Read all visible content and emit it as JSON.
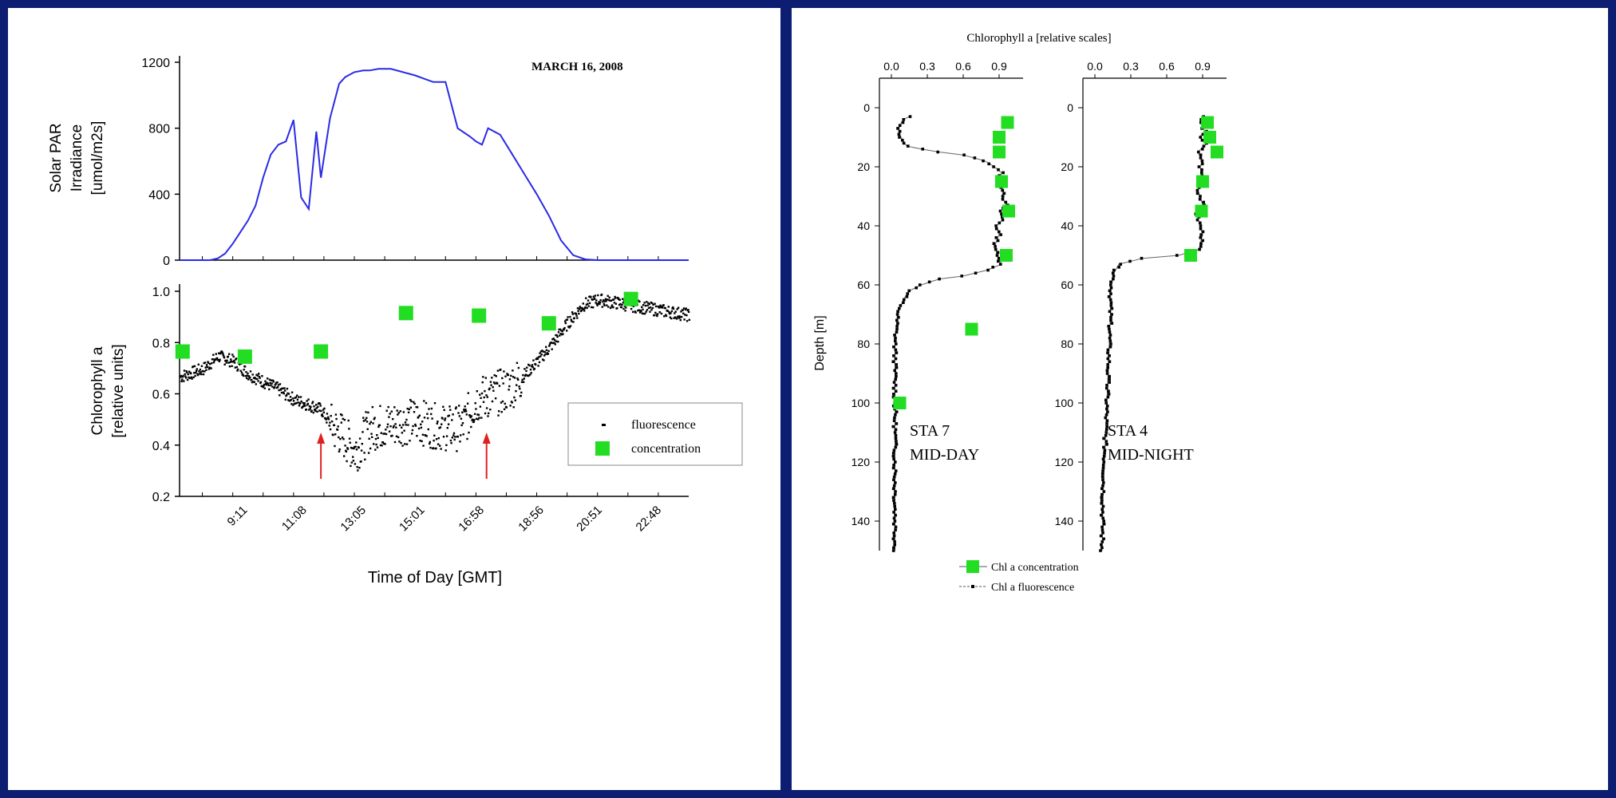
{
  "chart_data": [
    {
      "type": "line",
      "panel": "left-top",
      "title": "",
      "annotation": "MARCH 16, 2008",
      "ylabel_lines": [
        "Solar PAR",
        "Irradiance",
        "[umol/m2s]"
      ],
      "yticks": [
        "0",
        "400",
        "800",
        "1200"
      ],
      "ylim": [
        0,
        1200
      ],
      "xlim": [
        7.25,
        24.0
      ],
      "series": [
        {
          "color": "#2020e0",
          "x": [
            7.25,
            8.25,
            8.5,
            8.75,
            9.0,
            9.25,
            9.5,
            9.75,
            10.0,
            10.25,
            10.5,
            10.75,
            11.0,
            11.25,
            11.5,
            11.75,
            11.9,
            12.2,
            12.5,
            12.7,
            13.0,
            13.3,
            13.5,
            13.8,
            14.2,
            14.6,
            15.0,
            15.3,
            15.6,
            16.0,
            16.4,
            16.8,
            17.0,
            17.2,
            17.4,
            17.8,
            18.2,
            18.6,
            19.0,
            19.4,
            19.8,
            20.2,
            20.6,
            21.0,
            21.5,
            22.0,
            24.0
          ],
          "y": [
            0,
            0,
            10,
            40,
            100,
            170,
            240,
            330,
            500,
            640,
            700,
            720,
            850,
            380,
            310,
            780,
            500,
            860,
            1070,
            1110,
            1140,
            1150,
            1150,
            1160,
            1160,
            1140,
            1120,
            1100,
            1080,
            1080,
            800,
            750,
            720,
            700,
            800,
            760,
            640,
            520,
            400,
            270,
            120,
            30,
            5,
            0,
            0,
            0,
            0
          ]
        }
      ]
    },
    {
      "type": "scatter",
      "panel": "left-bottom",
      "ylabel_lines": [
        "Chlorophyll a",
        "[relative units]"
      ],
      "xlabel": "Time of Day [GMT]",
      "xticks": [
        "9:11",
        "11:08",
        "13:05",
        "15:01",
        "16:58",
        "18:56",
        "20:51",
        "22:48"
      ],
      "yticks": [
        "0.2",
        "0.4",
        "0.6",
        "0.8",
        "1.0"
      ],
      "ylim": [
        0.2,
        1.0
      ],
      "xlim": [
        7.25,
        24.0
      ],
      "legend": {
        "placement": "bottom-right",
        "entries": [
          "fluorescence",
          "concentration"
        ]
      },
      "series": [
        {
          "name": "fluorescence",
          "color": "#000000",
          "x": [
            7.25,
            8.0,
            8.5,
            9.0,
            9.5,
            10.0,
            10.5,
            11.0,
            11.5,
            11.9,
            12.2,
            12.6,
            13.0,
            13.5,
            14.0,
            14.5,
            15.0,
            15.5,
            16.0,
            16.5,
            17.0,
            17.5,
            18.0,
            18.5,
            19.0,
            19.5,
            20.0,
            20.5,
            21.0,
            21.5,
            22.0,
            22.5,
            23.0,
            23.5,
            24.0
          ],
          "y": [
            0.67,
            0.7,
            0.75,
            0.73,
            0.68,
            0.65,
            0.62,
            0.58,
            0.56,
            0.54,
            0.48,
            0.44,
            0.38,
            0.47,
            0.48,
            0.49,
            0.5,
            0.48,
            0.47,
            0.47,
            0.58,
            0.6,
            0.62,
            0.67,
            0.73,
            0.8,
            0.88,
            0.95,
            0.97,
            0.96,
            0.95,
            0.94,
            0.93,
            0.92,
            0.91
          ]
        },
        {
          "name": "concentration",
          "color": "#22dd22",
          "x": [
            7.35,
            9.4,
            11.9,
            14.7,
            17.1,
            19.4,
            22.1
          ],
          "y": [
            0.765,
            0.745,
            0.765,
            0.915,
            0.905,
            0.875,
            0.97
          ]
        }
      ],
      "arrows_x": [
        11.9,
        17.35
      ]
    },
    {
      "type": "scatter",
      "panel": "right-1",
      "title": "Chlorophyll a [relative scales]",
      "xticks": [
        "0.0",
        "0.3",
        "0.6",
        "0.9"
      ],
      "xlim": [
        -0.1,
        1.1
      ],
      "ylabel": "Depth [m]",
      "yticks": [
        "0",
        "20",
        "40",
        "60",
        "80",
        "100",
        "120",
        "140"
      ],
      "ylim": [
        150,
        -10
      ],
      "label_lines": [
        "STA 7",
        "MID-DAY"
      ],
      "series": [
        {
          "name": "Chl a fluorescence",
          "color": "#000000",
          "x": [
            0.15,
            0.1,
            0.07,
            0.06,
            0.08,
            0.11,
            0.13,
            0.25,
            0.4,
            0.6,
            0.78,
            0.86,
            0.92,
            0.9,
            0.94,
            0.92,
            0.96,
            0.91,
            0.93,
            0.88,
            0.9,
            0.87,
            0.88,
            0.92,
            0.8,
            0.6,
            0.4,
            0.25,
            0.15,
            0.1,
            0.07,
            0.05,
            0.04,
            0.03,
            0.03,
            0.03,
            0.03,
            0.03,
            0.03
          ],
          "y": [
            3,
            4,
            6,
            8,
            10,
            12,
            13,
            14,
            15,
            16,
            18,
            20,
            22,
            25,
            28,
            30,
            33,
            35,
            38,
            40,
            43,
            46,
            50,
            53,
            55,
            57,
            58,
            60,
            62,
            65,
            68,
            70,
            75,
            80,
            90,
            100,
            120,
            140,
            150
          ]
        },
        {
          "name": "Chl a concentration",
          "color": "#22dd22",
          "x": [
            0.97,
            0.9,
            0.9,
            0.92,
            0.98,
            0.96,
            0.67,
            0.07
          ],
          "y": [
            5,
            10,
            15,
            25,
            35,
            50,
            75,
            100
          ]
        }
      ]
    },
    {
      "type": "scatter",
      "panel": "right-2",
      "xticks": [
        "0.0",
        "0.3",
        "0.6",
        "0.9"
      ],
      "xlim": [
        -0.1,
        1.1
      ],
      "yticks": [
        "0",
        "20",
        "40",
        "60",
        "80",
        "100",
        "120",
        "140"
      ],
      "ylim": [
        150,
        -10
      ],
      "label_lines": [
        "STA 4",
        "MID-NIGHT"
      ],
      "series": [
        {
          "name": "Chl a fluorescence",
          "color": "#000000",
          "x": [
            0.9,
            0.88,
            0.92,
            0.87,
            0.94,
            0.86,
            0.9,
            0.88,
            0.89,
            0.9,
            0.86,
            0.88,
            0.9,
            0.85,
            0.88,
            0.9,
            0.88,
            0.87,
            0.7,
            0.4,
            0.2,
            0.16,
            0.14,
            0.13,
            0.13,
            0.12,
            0.11,
            0.1,
            0.09,
            0.08,
            0.07,
            0.06
          ],
          "y": [
            3,
            5,
            8,
            10,
            12,
            15,
            18,
            20,
            22,
            25,
            28,
            30,
            33,
            36,
            40,
            43,
            46,
            48,
            50,
            51,
            53,
            56,
            60,
            65,
            70,
            80,
            90,
            100,
            110,
            120,
            130,
            150
          ]
        },
        {
          "name": "Chl a concentration",
          "color": "#22dd22",
          "x": [
            0.94,
            0.96,
            1.02,
            0.9,
            0.89,
            0.8
          ],
          "y": [
            5,
            10,
            15,
            25,
            35,
            50
          ]
        }
      ],
      "legend": {
        "placement": "bottom",
        "entries": [
          "Chl a concentration",
          "Chl a fluorescence"
        ]
      }
    }
  ]
}
